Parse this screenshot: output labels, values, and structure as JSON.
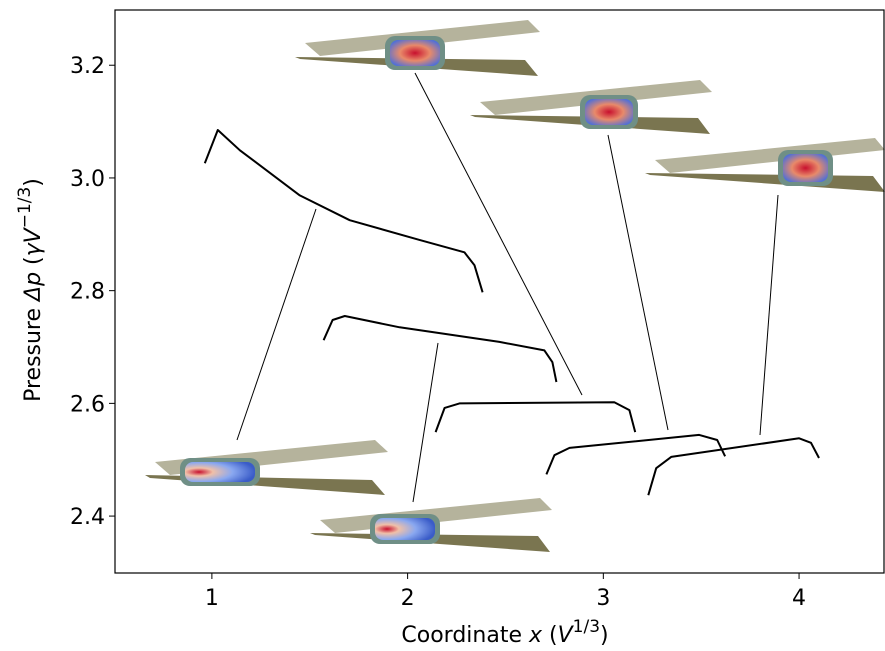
{
  "chart_data": {
    "type": "line",
    "x_label": [
      "Coordinate ",
      "x",
      "  (",
      "V",
      "1/3",
      ")"
    ],
    "y_label": [
      "Pressure ",
      "Δp",
      "  (",
      "γV",
      "−1/3",
      ")"
    ],
    "xlim": [
      0.505,
      4.434
    ],
    "ylim": [
      2.299,
      3.298
    ],
    "xticks": [
      1,
      2,
      3,
      4
    ],
    "yticks": [
      2.4,
      2.6,
      2.8,
      {
        "value": 3,
        "label": "3.0"
      },
      3.2
    ],
    "series": [
      {
        "color": "#000000",
        "x": [
          0.964,
          1.03,
          1.143,
          1.449,
          1.704,
          2.061,
          2.29,
          2.342,
          2.383
        ],
        "values": [
          3.026,
          3.085,
          3.049,
          2.969,
          2.925,
          2.89,
          2.868,
          2.845,
          2.797
        ]
      },
      {
        "color": "#000000",
        "x": [
          1.571,
          1.617,
          1.679,
          1.959,
          2.469,
          2.699,
          2.74,
          2.76
        ],
        "values": [
          2.712,
          2.748,
          2.755,
          2.735,
          2.709,
          2.694,
          2.673,
          2.638
        ]
      },
      {
        "color": "#000000",
        "x": [
          2.143,
          2.189,
          2.265,
          3.056,
          3.133,
          3.163
        ],
        "values": [
          2.549,
          2.592,
          2.6,
          2.602,
          2.588,
          2.549
        ]
      },
      {
        "color": "#000000",
        "x": [
          2.709,
          2.75,
          2.827,
          3.49,
          3.582,
          3.622
        ],
        "values": [
          2.474,
          2.508,
          2.521,
          2.544,
          2.535,
          2.506
        ]
      },
      {
        "color": "#000000",
        "x": [
          3.23,
          3.27,
          3.347,
          4.0,
          4.061,
          4.102
        ],
        "values": [
          2.437,
          2.485,
          2.505,
          2.538,
          2.53,
          2.503
        ]
      }
    ]
  }
}
